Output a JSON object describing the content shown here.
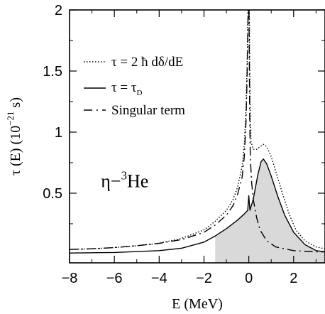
{
  "chart_data": {
    "type": "line",
    "xlabel": "E (MeV)",
    "ylabel": "τ (E) (10",
    "ylabel_exp": "−21",
    "ylabel_tail": " s)",
    "xlim": [
      -8,
      3.4
    ],
    "ylim": [
      -0.07,
      2.0
    ],
    "x_ticks": [
      -8,
      -6,
      -4,
      -2,
      0,
      2
    ],
    "x_tick_labels": [
      "−8",
      "−6",
      "−4",
      "−2",
      "0",
      "2"
    ],
    "y_ticks": [
      0.5,
      1,
      1.5,
      2
    ],
    "y_tick_labels": [
      "0.5",
      "1",
      "1.5",
      "2"
    ],
    "annotation": {
      "prefix": "η−",
      "sup": "3",
      "base": "He",
      "x": -6.6,
      "y": 0.55
    },
    "legend": {
      "placement": "top-left",
      "entries": [
        {
          "style": "dotted",
          "label": "τ = 2 ħ dδ/dE"
        },
        {
          "style": "solid",
          "label": "τ = τ",
          "label_sub": "D"
        },
        {
          "style": "dashed",
          "label": "Singular term"
        }
      ]
    },
    "series": [
      {
        "style": "dotted",
        "points": [
          [
            -8,
            0.04
          ],
          [
            -7,
            0.045
          ],
          [
            -6,
            0.055
          ],
          [
            -5,
            0.07
          ],
          [
            -4,
            0.09
          ],
          [
            -3,
            0.13
          ],
          [
            -2,
            0.2
          ],
          [
            -1.5,
            0.27
          ],
          [
            -1,
            0.36
          ],
          [
            -0.7,
            0.45
          ],
          [
            -0.5,
            0.55
          ],
          [
            -0.3,
            0.72
          ],
          [
            -0.2,
            0.9
          ],
          [
            -0.12,
            1.2
          ],
          [
            -0.07,
            1.6
          ],
          [
            -0.04,
            2.0
          ],
          [
            0.02,
            2.0
          ],
          [
            0.04,
            1.6
          ],
          [
            0.06,
            1.2
          ],
          [
            0.1,
            0.92
          ],
          [
            0.2,
            0.86
          ],
          [
            0.35,
            0.86
          ],
          [
            0.5,
            0.88
          ],
          [
            0.65,
            0.9
          ],
          [
            0.8,
            0.88
          ],
          [
            1,
            0.8
          ],
          [
            1.2,
            0.68
          ],
          [
            1.5,
            0.5
          ],
          [
            1.8,
            0.33
          ],
          [
            2.1,
            0.2
          ],
          [
            2.5,
            0.11
          ],
          [
            3,
            0.06
          ],
          [
            3.4,
            0.045
          ]
        ]
      },
      {
        "style": "solid",
        "points": [
          [
            -8,
            0.01
          ],
          [
            -6,
            0.015
          ],
          [
            -4,
            0.03
          ],
          [
            -3,
            0.05
          ],
          [
            -2,
            0.1
          ],
          [
            -1.5,
            0.15
          ],
          [
            -1,
            0.21
          ],
          [
            -0.5,
            0.28
          ],
          [
            -0.2,
            0.33
          ],
          [
            -0.05,
            0.36
          ],
          [
            0,
            0.48
          ],
          [
            0.05,
            0.36
          ],
          [
            0.2,
            0.45
          ],
          [
            0.4,
            0.65
          ],
          [
            0.55,
            0.76
          ],
          [
            0.65,
            0.78
          ],
          [
            0.8,
            0.74
          ],
          [
            1,
            0.64
          ],
          [
            1.3,
            0.47
          ],
          [
            1.6,
            0.32
          ],
          [
            2,
            0.18
          ],
          [
            2.5,
            0.08
          ],
          [
            3,
            0.03
          ],
          [
            3.4,
            0.02
          ]
        ]
      },
      {
        "style": "dashdot",
        "points": [
          [
            -8,
            0.04
          ],
          [
            -7,
            0.045
          ],
          [
            -6,
            0.055
          ],
          [
            -5,
            0.07
          ],
          [
            -4,
            0.09
          ],
          [
            -3,
            0.12
          ],
          [
            -2,
            0.18
          ],
          [
            -1.5,
            0.24
          ],
          [
            -1,
            0.32
          ],
          [
            -0.7,
            0.4
          ],
          [
            -0.5,
            0.49
          ],
          [
            -0.3,
            0.63
          ],
          [
            -0.2,
            0.8
          ],
          [
            -0.12,
            1.1
          ],
          [
            -0.07,
            1.5
          ],
          [
            -0.03,
            2.0
          ],
          [
            0.01,
            2.0
          ],
          [
            0.04,
            1.1
          ],
          [
            0.07,
            0.8
          ],
          [
            0.12,
            0.6
          ],
          [
            0.2,
            0.45
          ],
          [
            0.35,
            0.3
          ],
          [
            0.5,
            0.2
          ],
          [
            0.8,
            0.11
          ],
          [
            1.2,
            0.06
          ],
          [
            2,
            0.03
          ],
          [
            3,
            0.02
          ],
          [
            3.4,
            0.02
          ]
        ]
      }
    ],
    "fill": {
      "color": "#d9d9d9",
      "points": [
        [
          -1.5,
          0.15
        ],
        [
          -1,
          0.21
        ],
        [
          -0.5,
          0.28
        ],
        [
          -0.2,
          0.33
        ],
        [
          -0.05,
          0.36
        ],
        [
          0,
          0.48
        ],
        [
          0.05,
          0.36
        ],
        [
          0.2,
          0.45
        ],
        [
          0.4,
          0.65
        ],
        [
          0.55,
          0.76
        ],
        [
          0.65,
          0.78
        ],
        [
          0.8,
          0.74
        ],
        [
          1,
          0.64
        ],
        [
          1.3,
          0.47
        ],
        [
          1.6,
          0.32
        ],
        [
          2,
          0.18
        ],
        [
          2.5,
          0.08
        ],
        [
          3,
          0.03
        ],
        [
          3.4,
          0.02
        ]
      ]
    }
  }
}
